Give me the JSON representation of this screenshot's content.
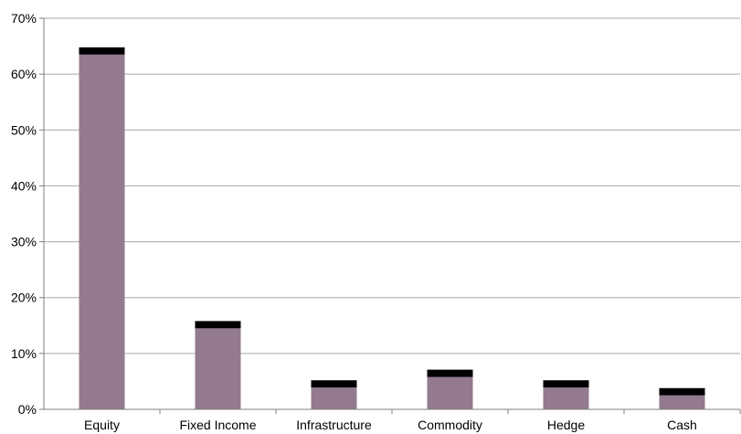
{
  "chart_data": {
    "type": "bar",
    "stacked": true,
    "categories": [
      "Equity",
      "Fixed Income",
      "Infrastructure",
      "Commodity",
      "Hedge",
      "Cash"
    ],
    "series": [
      {
        "values": [
          63.5,
          14.5,
          3.9,
          5.8,
          3.9,
          2.5
        ]
      },
      {
        "values": [
          1.3,
          1.3,
          1.3,
          1.3,
          1.3,
          1.3
        ]
      }
    ],
    "y_ticks": [
      "0%",
      "10%",
      "20%",
      "30%",
      "40%",
      "50%",
      "60%",
      "70%"
    ],
    "ylim": [
      0,
      70
    ],
    "grid": true,
    "legend": "none",
    "colors": {
      "base": "#937A8F",
      "top": "#000000",
      "grid": "#A6A6A6",
      "axis": "#7F7F7F"
    }
  }
}
